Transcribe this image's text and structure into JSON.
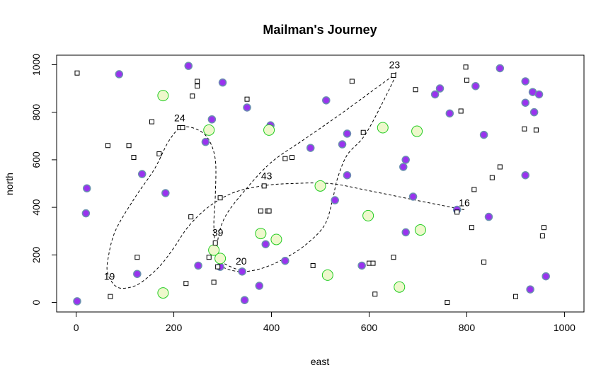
{
  "chart_data": {
    "type": "scatter",
    "title": "Mailman's Journey",
    "xlabel": "east",
    "ylabel": "north",
    "xlim": [
      -40,
      1040
    ],
    "ylim": [
      -40,
      1040
    ],
    "x_ticks": [
      0,
      200,
      400,
      600,
      800,
      1000
    ],
    "y_ticks": [
      0,
      200,
      400,
      600,
      800,
      1000
    ],
    "x_tick_labels": [
      "0",
      "200",
      "400",
      "600",
      "800",
      "1000"
    ],
    "y_tick_labels": [
      "0",
      "200",
      "400",
      "600",
      "800",
      "1000"
    ],
    "grid": false,
    "colors": {
      "purple_fill": "#9933ee",
      "purple_edge": "#6a8fb0",
      "green_fill": "#eef8cc",
      "green_edge": "#22cc22",
      "square_edge": "#000000",
      "path": "#000000"
    },
    "series": [
      {
        "marker": "filled-circle",
        "x": [
          230,
          88,
          300,
          350,
          398,
          278,
          265,
          512,
          480,
          555,
          545,
          135,
          183,
          22,
          125,
          20,
          2,
          295,
          340,
          250,
          388,
          530,
          555,
          675,
          670,
          690,
          675,
          745,
          735,
          765,
          818,
          835,
          868,
          920,
          935,
          948,
          920,
          938,
          920,
          780,
          845,
          428,
          585,
          375,
          345,
          930,
          962
        ],
        "y": [
          995,
          960,
          925,
          820,
          745,
          770,
          675,
          850,
          650,
          710,
          665,
          540,
          460,
          480,
          120,
          375,
          5,
          150,
          130,
          155,
          245,
          430,
          535,
          600,
          570,
          445,
          295,
          900,
          875,
          795,
          910,
          705,
          985,
          930,
          885,
          875,
          840,
          800,
          535,
          390,
          360,
          175,
          155,
          70,
          10,
          55,
          110
        ]
      },
      {
        "marker": "open-circle",
        "x": [
          178,
          272,
          395,
          628,
          698,
          500,
          598,
          705,
          378,
          410,
          282,
          295,
          178,
          515,
          662
        ],
        "y": [
          870,
          725,
          725,
          735,
          720,
          490,
          365,
          305,
          290,
          265,
          220,
          185,
          40,
          115,
          65
        ]
      },
      {
        "marker": "open-square",
        "x": [
          2,
          248,
          248,
          238,
          155,
          170,
          65,
          118,
          108,
          125,
          225,
          295,
          212,
          350,
          378,
          392,
          395,
          385,
          428,
          442,
          565,
          588,
          600,
          650,
          695,
          798,
          800,
          788,
          780,
          810,
          852,
          868,
          835,
          815,
          918,
          942,
          958,
          955,
          900,
          760,
          612,
          608,
          650,
          485,
          272,
          282,
          285,
          235,
          218,
          290,
          70
        ],
        "y": [
          965,
          910,
          930,
          868,
          760,
          625,
          660,
          610,
          660,
          190,
          80,
          440,
          735,
          855,
          385,
          385,
          385,
          490,
          605,
          610,
          930,
          715,
          165,
          955,
          895,
          990,
          935,
          805,
          380,
          315,
          525,
          570,
          170,
          475,
          730,
          725,
          315,
          280,
          25,
          0,
          35,
          165,
          190,
          155,
          190,
          85,
          250,
          360,
          735,
          150,
          25
        ]
      }
    ],
    "route": [
      [
        795,
        390
      ],
      [
        720,
        420
      ],
      [
        600,
        470
      ],
      [
        520,
        500
      ],
      [
        440,
        500
      ],
      [
        380,
        490
      ],
      [
        320,
        460
      ],
      [
        270,
        400
      ],
      [
        230,
        320
      ],
      [
        200,
        230
      ],
      [
        170,
        150
      ],
      [
        130,
        80
      ],
      [
        100,
        60
      ],
      [
        80,
        70
      ],
      [
        65,
        120
      ],
      [
        65,
        180
      ],
      [
        80,
        300
      ],
      [
        120,
        440
      ],
      [
        160,
        560
      ],
      [
        190,
        680
      ],
      [
        215,
        735
      ],
      [
        245,
        730
      ],
      [
        270,
        690
      ],
      [
        285,
        600
      ],
      [
        285,
        450
      ],
      [
        282,
        330
      ],
      [
        285,
        230
      ],
      [
        290,
        170
      ],
      [
        310,
        140
      ],
      [
        345,
        130
      ],
      [
        390,
        150
      ],
      [
        440,
        200
      ],
      [
        480,
        260
      ],
      [
        510,
        330
      ],
      [
        525,
        430
      ],
      [
        535,
        520
      ],
      [
        555,
        620
      ],
      [
        590,
        700
      ],
      [
        625,
        830
      ],
      [
        655,
        960
      ],
      [
        640,
        940
      ],
      [
        600,
        880
      ],
      [
        540,
        790
      ],
      [
        470,
        690
      ],
      [
        400,
        590
      ],
      [
        345,
        470
      ],
      [
        305,
        360
      ],
      [
        290,
        260
      ],
      [
        293,
        180
      ],
      [
        340,
        130
      ]
    ],
    "annotations": [
      {
        "text": "16",
        "x": 795,
        "y": 405
      },
      {
        "text": "19",
        "x": 68,
        "y": 95
      },
      {
        "text": "20",
        "x": 338,
        "y": 160
      },
      {
        "text": "23",
        "x": 652,
        "y": 985
      },
      {
        "text": "24",
        "x": 212,
        "y": 762
      },
      {
        "text": "39",
        "x": 290,
        "y": 280
      },
      {
        "text": "43",
        "x": 390,
        "y": 518
      }
    ]
  }
}
